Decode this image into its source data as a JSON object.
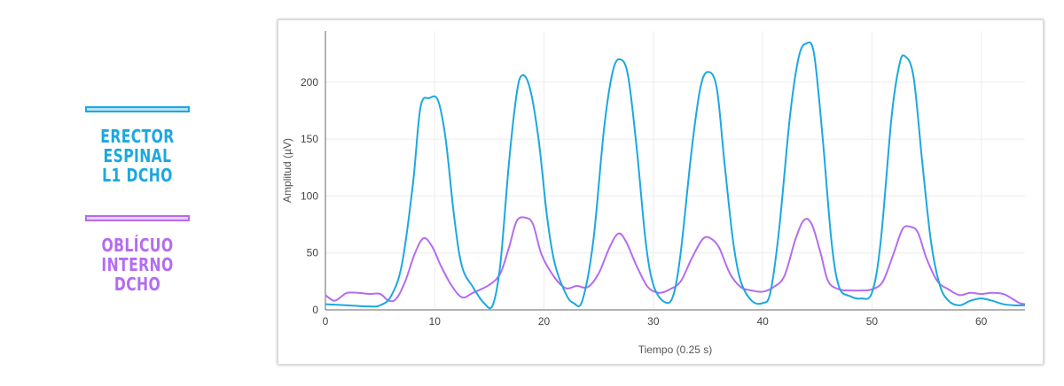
{
  "legend": [
    {
      "label": "ERECTOR ESPINAL\nL1 DCHO",
      "color": "#1BA8E0"
    },
    {
      "label": "OBLÍCUO INTERNO\nDCHO",
      "color": "#B46CF0"
    }
  ],
  "chart_data": {
    "type": "line",
    "xlabel": "Tiempo (0.25 s)",
    "ylabel": "Amplitud (µV)",
    "xlim": [
      0,
      64
    ],
    "ylim": [
      0,
      245
    ],
    "xticks": [
      0,
      10,
      20,
      30,
      40,
      50,
      60
    ],
    "yticks": [
      0,
      50,
      100,
      150,
      200
    ],
    "grid": true,
    "series": [
      {
        "name": "ERECTOR ESPINAL L1 DCHO",
        "color": "#1BA8E0",
        "points": [
          [
            0,
            5
          ],
          [
            2,
            4
          ],
          [
            4,
            3
          ],
          [
            5,
            4
          ],
          [
            6,
            12
          ],
          [
            7,
            40
          ],
          [
            8,
            110
          ],
          [
            8.7,
            178
          ],
          [
            9.5,
            186
          ],
          [
            10.3,
            184
          ],
          [
            11,
            150
          ],
          [
            11.8,
            80
          ],
          [
            12.5,
            38
          ],
          [
            13.5,
            20
          ],
          [
            14.5,
            6
          ],
          [
            15.3,
            4
          ],
          [
            16,
            40
          ],
          [
            16.8,
            130
          ],
          [
            17.5,
            190
          ],
          [
            18,
            206
          ],
          [
            18.7,
            195
          ],
          [
            19.5,
            150
          ],
          [
            20.3,
            80
          ],
          [
            21,
            40
          ],
          [
            22,
            14
          ],
          [
            22.7,
            6
          ],
          [
            23.5,
            8
          ],
          [
            24.5,
            60
          ],
          [
            25.5,
            160
          ],
          [
            26.3,
            210
          ],
          [
            27,
            220
          ],
          [
            27.7,
            205
          ],
          [
            28.5,
            140
          ],
          [
            29.3,
            60
          ],
          [
            30,
            22
          ],
          [
            31,
            7
          ],
          [
            31.8,
            12
          ],
          [
            32.5,
            50
          ],
          [
            33.5,
            140
          ],
          [
            34.3,
            195
          ],
          [
            35,
            209
          ],
          [
            35.8,
            195
          ],
          [
            36.5,
            130
          ],
          [
            37.3,
            60
          ],
          [
            38,
            25
          ],
          [
            39,
            8
          ],
          [
            40,
            6
          ],
          [
            40.7,
            15
          ],
          [
            41.5,
            70
          ],
          [
            42.5,
            170
          ],
          [
            43.3,
            222
          ],
          [
            44,
            234
          ],
          [
            44.7,
            225
          ],
          [
            45.5,
            150
          ],
          [
            46.3,
            60
          ],
          [
            47,
            20
          ],
          [
            48,
            12
          ],
          [
            49,
            10
          ],
          [
            50,
            15
          ],
          [
            50.8,
            60
          ],
          [
            51.8,
            170
          ],
          [
            52.5,
            215
          ],
          [
            53,
            223
          ],
          [
            53.8,
            205
          ],
          [
            54.6,
            130
          ],
          [
            55.4,
            60
          ],
          [
            56.2,
            22
          ],
          [
            57,
            8
          ],
          [
            58,
            4
          ],
          [
            59,
            8
          ],
          [
            60,
            10
          ],
          [
            61,
            8
          ],
          [
            62,
            5
          ],
          [
            63,
            4
          ],
          [
            64,
            4
          ]
        ]
      },
      {
        "name": "OBLÍCUO INTERNO DCHO",
        "color": "#B46CF0",
        "points": [
          [
            0,
            13
          ],
          [
            0.8,
            8
          ],
          [
            1.5,
            12
          ],
          [
            2,
            15
          ],
          [
            3,
            15
          ],
          [
            4,
            14
          ],
          [
            5,
            14
          ],
          [
            5.8,
            8
          ],
          [
            6.5,
            10
          ],
          [
            7.3,
            25
          ],
          [
            8.2,
            50
          ],
          [
            9,
            63
          ],
          [
            9.8,
            55
          ],
          [
            10.5,
            40
          ],
          [
            11.5,
            22
          ],
          [
            12.5,
            11
          ],
          [
            13.5,
            15
          ],
          [
            15,
            22
          ],
          [
            16,
            32
          ],
          [
            16.8,
            55
          ],
          [
            17.5,
            78
          ],
          [
            18.3,
            81
          ],
          [
            19,
            75
          ],
          [
            19.8,
            48
          ],
          [
            21,
            28
          ],
          [
            22,
            19
          ],
          [
            23,
            21
          ],
          [
            24,
            20
          ],
          [
            25,
            32
          ],
          [
            26,
            55
          ],
          [
            26.8,
            67
          ],
          [
            27.5,
            60
          ],
          [
            28.5,
            38
          ],
          [
            29.5,
            20
          ],
          [
            30.5,
            15
          ],
          [
            31.5,
            18
          ],
          [
            32.5,
            25
          ],
          [
            33.5,
            45
          ],
          [
            34.5,
            62
          ],
          [
            35.2,
            63
          ],
          [
            36,
            55
          ],
          [
            37,
            32
          ],
          [
            38,
            20
          ],
          [
            39,
            17
          ],
          [
            40,
            16
          ],
          [
            41,
            20
          ],
          [
            42,
            30
          ],
          [
            43,
            62
          ],
          [
            43.8,
            79
          ],
          [
            44.5,
            75
          ],
          [
            45.3,
            50
          ],
          [
            46,
            25
          ],
          [
            47,
            18
          ],
          [
            48,
            17
          ],
          [
            49,
            17
          ],
          [
            50,
            18
          ],
          [
            51,
            25
          ],
          [
            52,
            50
          ],
          [
            52.8,
            71
          ],
          [
            53.5,
            73
          ],
          [
            54.2,
            68
          ],
          [
            55,
            45
          ],
          [
            56,
            25
          ],
          [
            57,
            18
          ],
          [
            58,
            13
          ],
          [
            59,
            15
          ],
          [
            60,
            14
          ],
          [
            61,
            15
          ],
          [
            62,
            14
          ],
          [
            62.8,
            10
          ],
          [
            63.5,
            6
          ],
          [
            64,
            5
          ]
        ]
      }
    ]
  }
}
